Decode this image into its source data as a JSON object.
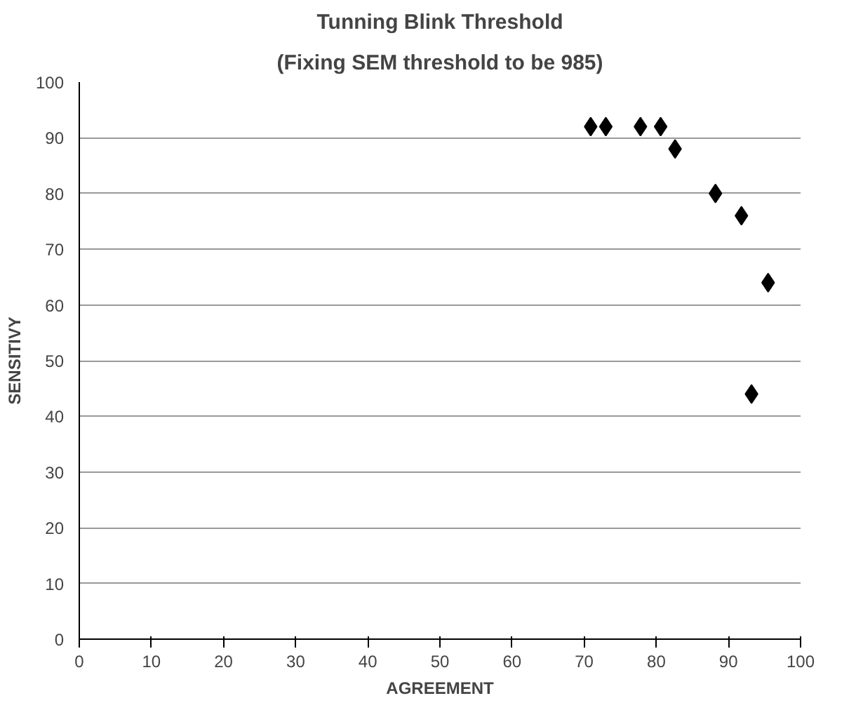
{
  "chart_data": {
    "type": "scatter",
    "title": "Tunning Blink Threshold",
    "subtitle": "(Fixing SEM threshold to be 985)",
    "xlabel": "AGREEMENT",
    "ylabel": "SENSITIVY",
    "x": [
      70.9,
      73.0,
      77.8,
      80.6,
      82.6,
      88.2,
      91.8,
      95.5,
      93.2
    ],
    "series": [
      {
        "color": "#000000",
        "values": [
          92,
          92,
          92,
          92,
          88,
          80,
          76,
          64,
          44
        ]
      }
    ],
    "marker": "diamond",
    "xlim": [
      0,
      100
    ],
    "ylim": [
      0,
      100
    ],
    "xticks": [
      0,
      10,
      20,
      30,
      40,
      50,
      60,
      70,
      80,
      90,
      100
    ],
    "yticks": [
      0,
      10,
      20,
      30,
      40,
      50,
      60,
      70,
      80,
      90,
      100
    ],
    "grid": "y"
  }
}
